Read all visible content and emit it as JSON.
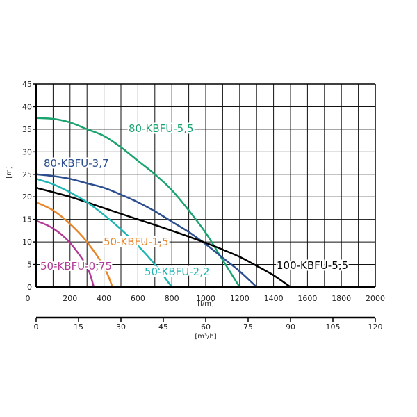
{
  "chart_data": {
    "type": "line",
    "title": "",
    "ylabel": "[m]",
    "xlabel": "[l/m]",
    "x2label": "[m³/h]",
    "xlim": [
      0,
      2000
    ],
    "ylim": [
      0,
      45
    ],
    "x2lim": [
      0,
      120
    ],
    "grid": true,
    "yticks": [
      "0",
      "5",
      "10",
      "15",
      "20",
      "25",
      "30",
      "35",
      "40",
      "45"
    ],
    "xticks": [
      "0",
      "200",
      "400",
      "600",
      "800",
      "1000",
      "1200",
      "1400",
      "1600",
      "1800",
      "2000"
    ],
    "x2ticks": [
      "0",
      "15",
      "30",
      "45",
      "60",
      "75",
      "90",
      "105",
      "120"
    ],
    "series": [
      {
        "name": "80-KBFU-5,5",
        "color": "#1aa36f",
        "x": [
          0,
          100,
          200,
          300,
          400,
          500,
          600,
          700,
          800,
          900,
          1000,
          1100,
          1200
        ],
        "y": [
          37.5,
          37.3,
          36.5,
          35,
          33.5,
          31,
          28,
          25,
          21.5,
          17,
          12,
          6,
          0
        ]
      },
      {
        "name": "80-KBFU-3,7",
        "color": "#2c4e8f",
        "x": [
          0,
          100,
          200,
          300,
          400,
          500,
          600,
          700,
          800,
          900,
          1000,
          1100,
          1200,
          1300
        ],
        "y": [
          25,
          24.6,
          24,
          23,
          22,
          20.5,
          18.8,
          16.8,
          14.5,
          12.2,
          9.5,
          6.5,
          3.5,
          0
        ]
      },
      {
        "name": "100-KBFU-5,5",
        "color": "#000000",
        "x": [
          0,
          200,
          400,
          600,
          800,
          1000,
          1100,
          1200,
          1300,
          1400,
          1500
        ],
        "y": [
          22,
          20,
          17.5,
          15,
          12.5,
          9.8,
          8.3,
          6.7,
          4.7,
          2.6,
          0
        ]
      },
      {
        "name": "50-KBFU-2,2",
        "color": "#1fb5b5",
        "x": [
          0,
          100,
          200,
          300,
          400,
          500,
          600,
          700,
          800
        ],
        "y": [
          24,
          22.8,
          21,
          18.8,
          16,
          12.8,
          9.2,
          5,
          0
        ]
      },
      {
        "name": "50-KBFU-1,5",
        "color": "#e8862a",
        "x": [
          0,
          100,
          200,
          300,
          400,
          450
        ],
        "y": [
          18.8,
          17,
          14,
          10,
          4.5,
          0
        ]
      },
      {
        "name": "50-KBFU-0,75",
        "color": "#b23b96",
        "x": [
          0,
          100,
          200,
          300,
          340
        ],
        "y": [
          14.7,
          13,
          9.8,
          4.5,
          0
        ]
      }
    ]
  }
}
